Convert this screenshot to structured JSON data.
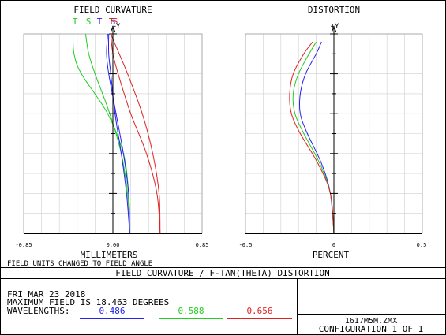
{
  "chart_data": [
    {
      "type": "line",
      "title": "FIELD CURVATURE",
      "xlabel": "MILLIMETERS",
      "xlim": [
        -0.85,
        0.85
      ],
      "x_ticks": [
        "-0.85",
        "0.00",
        "0.85"
      ],
      "y_axis_label": "+Y",
      "grid": true,
      "legend": [
        {
          "label": "T",
          "color": "#22cc22"
        },
        {
          "label": "S",
          "color": "#22cc22"
        },
        {
          "label": "T",
          "color": "#2222ee"
        },
        {
          "label": "S",
          "color": "#2222ee"
        },
        {
          "label": "T",
          "color": "#dd2222"
        },
        {
          "label": "S",
          "color": "#dd2222"
        }
      ],
      "series": [
        {
          "color": "#22cc22",
          "y": [
            0,
            0.2,
            0.4,
            0.6,
            0.8,
            0.9,
            1.0
          ],
          "x": [
            0.16,
            0.15,
            0.1,
            -0.05,
            -0.3,
            -0.37,
            -0.38
          ]
        },
        {
          "color": "#22cc22",
          "y": [
            0,
            0.2,
            0.4,
            0.6,
            0.8,
            0.9,
            1.0
          ],
          "x": [
            0.16,
            0.14,
            0.08,
            -0.03,
            -0.17,
            -0.23,
            -0.26
          ]
        },
        {
          "color": "#2222ee",
          "y": [
            0,
            0.2,
            0.4,
            0.6,
            0.8,
            0.9,
            1.0
          ],
          "x": [
            0.16,
            0.15,
            0.1,
            0.03,
            -0.04,
            -0.06,
            -0.05
          ]
        },
        {
          "color": "#2222ee",
          "y": [
            0,
            0.2,
            0.4,
            0.6,
            0.8,
            0.9,
            1.0
          ],
          "x": [
            0.16,
            0.13,
            0.08,
            0.02,
            -0.02,
            -0.04,
            -0.04
          ]
        },
        {
          "color": "#dd2222",
          "y": [
            0,
            0.2,
            0.4,
            0.6,
            0.8,
            0.9,
            1.0
          ],
          "x": [
            0.45,
            0.44,
            0.38,
            0.28,
            0.14,
            0.06,
            -0.02
          ]
        },
        {
          "color": "#dd2222",
          "y": [
            0,
            0.2,
            0.4,
            0.6,
            0.8,
            0.9,
            1.0
          ],
          "x": [
            0.45,
            0.42,
            0.32,
            0.17,
            0.05,
            0.0,
            -0.02
          ]
        }
      ]
    },
    {
      "type": "line",
      "title": "DISTORTION",
      "xlabel": "PERCENT",
      "xlim": [
        -0.5,
        0.5
      ],
      "x_ticks": [
        "-0.5",
        "0",
        "0.5"
      ],
      "y_axis_label": "+Y",
      "grid": true,
      "series": [
        {
          "color": "#2222ee",
          "y": [
            0,
            0.2,
            0.35,
            0.5,
            0.6,
            0.7,
            0.8,
            0.9,
            0.96
          ],
          "x": [
            0.0,
            -0.02,
            -0.07,
            -0.15,
            -0.19,
            -0.19,
            -0.16,
            -0.1,
            -0.07
          ]
        },
        {
          "color": "#22cc22",
          "y": [
            0,
            0.2,
            0.35,
            0.5,
            0.6,
            0.7,
            0.8,
            0.9,
            0.96
          ],
          "x": [
            0.0,
            -0.02,
            -0.08,
            -0.17,
            -0.22,
            -0.23,
            -0.2,
            -0.14,
            -0.1
          ]
        },
        {
          "color": "#dd2222",
          "y": [
            0,
            0.2,
            0.35,
            0.5,
            0.6,
            0.7,
            0.8,
            0.9,
            0.96
          ],
          "x": [
            0.0,
            -0.02,
            -0.09,
            -0.19,
            -0.24,
            -0.25,
            -0.23,
            -0.17,
            -0.12
          ]
        }
      ]
    }
  ],
  "note": "FIELD UNITS CHANGED TO FIELD ANGLE",
  "banner": "FIELD CURVATURE / F-TAN(THETA) DISTORTION",
  "info": {
    "date": "FRI MAR 23 2018",
    "max_field": "MAXIMUM FIELD IS 18.463 DEGREES",
    "wavelengths_label": "WAVELENGTHS:",
    "wavelengths": [
      {
        "value": "0.486",
        "color": "#2222ee"
      },
      {
        "value": "0.588",
        "color": "#22cc22"
      },
      {
        "value": "0.656",
        "color": "#dd2222"
      }
    ]
  },
  "file": {
    "name": "1617M5M.ZMX",
    "config": "CONFIGURATION 1 OF 1"
  }
}
